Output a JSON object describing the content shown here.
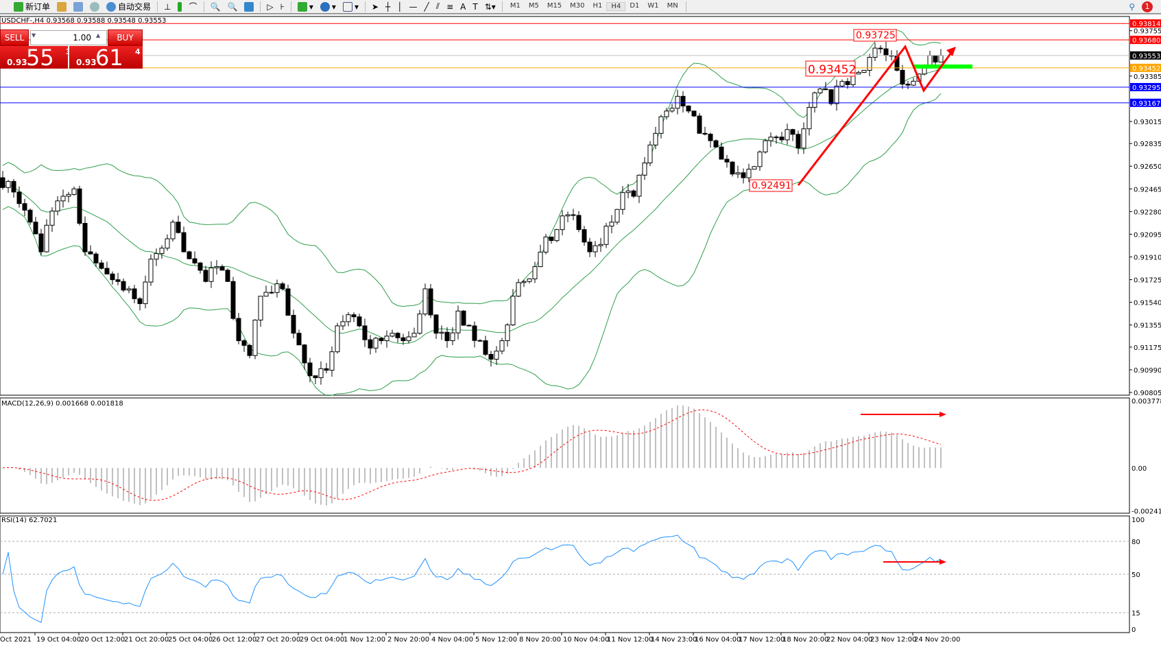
{
  "toolbar": {
    "new_order": "新订单",
    "auto_trading": "自动交易",
    "timeframes": [
      "M1",
      "M5",
      "M15",
      "M30",
      "H1",
      "H4",
      "D1",
      "W1",
      "MN"
    ],
    "active_timeframe": "H4",
    "notification_count": "1"
  },
  "chart_header": "USDCHF-,H4  0.93568 0.93588 0.93548 0.93553",
  "one_click": {
    "sell_label": "SELL",
    "buy_label": "BUY",
    "lot": "1.00",
    "sell_prefix": "0.93",
    "sell_big": "55",
    "sell_pip": "3",
    "buy_prefix": "0.93",
    "buy_big": "61",
    "buy_pip": "4"
  },
  "price_axis": {
    "ticks": [
      "0.93755",
      "0.93385",
      "0.93015",
      "0.92835",
      "0.92650",
      "0.92465",
      "0.92280",
      "0.92095",
      "0.91910",
      "0.91725",
      "0.91540",
      "0.91355",
      "0.91175",
      "0.90990",
      "0.90805"
    ]
  },
  "levels": [
    {
      "price": "0.93814",
      "color": "#ff0000"
    },
    {
      "price": "0.93680",
      "color": "#ff0000"
    },
    {
      "price": "0.93553",
      "color": "#000000",
      "line": "#c0c0c0"
    },
    {
      "price": "0.93452",
      "color": "#ffa500"
    },
    {
      "price": "0.93295",
      "color": "#0000ff"
    },
    {
      "price": "0.93167",
      "color": "#0000ff"
    }
  ],
  "annotations": {
    "high": "0.93725",
    "mid": "0.93452",
    "low": "0.92491"
  },
  "closes": [
    0.92526,
    0.92345,
    0.92194,
    0.91952,
    0.92284,
    0.92405,
    0.92465,
    0.91952,
    0.91861,
    0.91771,
    0.9171,
    0.9165,
    0.91529,
    0.91892,
    0.91982,
    0.92194,
    0.91952,
    0.91861,
    0.9171,
    0.91831,
    0.9171,
    0.91227,
    0.91106,
    0.9159,
    0.9162,
    0.9165,
    0.91288,
    0.91046,
    0.90925,
    0.90986,
    0.91348,
    0.91439,
    0.91348,
    0.91167,
    0.91227,
    0.91288,
    0.91227,
    0.91288,
    0.9165,
    0.91288,
    0.91227,
    0.91469,
    0.91348,
    0.91227,
    0.91076,
    0.91227,
    0.9159,
    0.9171,
    0.91831,
    0.92073,
    0.92133,
    0.92254,
    0.92133,
    0.91952,
    0.92012,
    0.92194,
    0.92435,
    0.92405,
    0.92677,
    0.92918,
    0.931,
    0.9322,
    0.931,
    0.92918,
    0.92858,
    0.92707,
    0.92586,
    0.92556,
    0.92647,
    0.92858,
    0.92888,
    0.92949,
    0.92798,
    0.9313,
    0.9328,
    0.9316,
    0.93341,
    0.93402,
    0.93432,
    0.93613,
    0.93553,
    0.93432,
    0.93311,
    0.93402,
    0.93553,
    0.93553
  ],
  "macd": {
    "label": "MACD(12,26,9) 0.001668 0.001818",
    "ticks": [
      "0.003778",
      "0.00",
      "-0.002419"
    ]
  },
  "rsi": {
    "label": "RSI(14) 62.7021",
    "ticks": [
      "100",
      "80",
      "50",
      "15",
      "0"
    ]
  },
  "time_axis": [
    "Oct 2021",
    "19 Oct 04:00",
    "20 Oct 12:00",
    "21 Oct 20:00",
    "25 Oct 04:00",
    "26 Oct 12:00",
    "27 Oct 20:00",
    "29 Oct 04:00",
    "1 Nov 12:00",
    "2 Nov 20:00",
    "4 Nov 04:00",
    "5 Nov 12:00",
    "8 Nov 20:00",
    "10 Nov 04:00",
    "11 Nov 12:00",
    "14 Nov 23:00",
    "16 Nov 04:00",
    "17 Nov 12:00",
    "18 Nov 20:00",
    "22 Nov 04:00",
    "23 Nov 12:00",
    "24 Nov 20:00"
  ],
  "colors": {
    "bands": "#2e9e4a",
    "rsi": "#1e90ff",
    "signal": "#ff0000",
    "histogram": "#c0c0c0",
    "arrows": "#ff0000",
    "green_box": "#00ff00"
  }
}
